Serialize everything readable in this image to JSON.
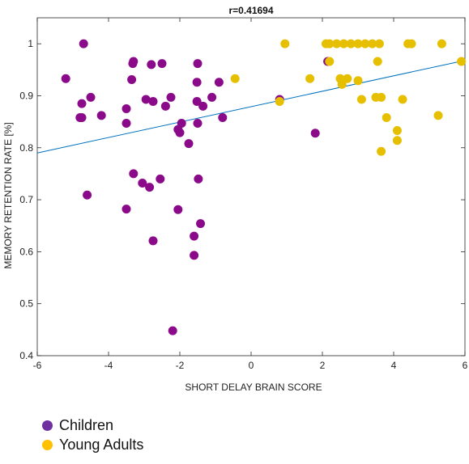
{
  "chart_data": {
    "type": "scatter",
    "title": "r=0.41694",
    "xlabel": "SHORT DELAY BRAIN SCORE",
    "ylabel": "MEMORY RETENTION RATE [%]",
    "xlim": [
      -6,
      6
    ],
    "ylim": [
      0.4,
      1.05
    ],
    "xticks": [
      "-6",
      "-4",
      "-2",
      "0",
      "2",
      "4",
      "6"
    ],
    "yticks": [
      "0.4",
      "0.5",
      "0.6",
      "0.7",
      "0.8",
      "0.9",
      "1"
    ],
    "grid": false,
    "legend_position": "bottom-left, outside",
    "trendline": {
      "x": [
        -6,
        6
      ],
      "y": [
        0.79,
        0.968
      ],
      "color": "#0072BD"
    },
    "series": [
      {
        "name": "Children",
        "color": "#8B0A8A",
        "legend_color": "#7030A0",
        "points": [
          [
            -4.7,
            1.0
          ],
          [
            -5.2,
            0.933
          ],
          [
            -3.3,
            0.966
          ],
          [
            -3.32,
            0.962
          ],
          [
            -2.8,
            0.96
          ],
          [
            -2.5,
            0.962
          ],
          [
            -1.5,
            0.962
          ],
          [
            -4.5,
            0.897
          ],
          [
            -3.35,
            0.931
          ],
          [
            -4.75,
            0.885
          ],
          [
            -4.8,
            0.858
          ],
          [
            -4.75,
            0.858
          ],
          [
            -4.2,
            0.862
          ],
          [
            -3.5,
            0.875
          ],
          [
            -3.5,
            0.847
          ],
          [
            -2.95,
            0.893
          ],
          [
            -2.75,
            0.889
          ],
          [
            -2.4,
            0.88
          ],
          [
            -2.25,
            0.897
          ],
          [
            -2.05,
            0.835
          ],
          [
            -2.0,
            0.829
          ],
          [
            -1.95,
            0.847
          ],
          [
            -1.75,
            0.808
          ],
          [
            -1.52,
            0.926
          ],
          [
            -1.52,
            0.889
          ],
          [
            -1.35,
            0.88
          ],
          [
            -1.1,
            0.897
          ],
          [
            -0.9,
            0.926
          ],
          [
            -1.5,
            0.847
          ],
          [
            -0.8,
            0.858
          ],
          [
            -4.6,
            0.709
          ],
          [
            -3.3,
            0.75
          ],
          [
            -3.05,
            0.732
          ],
          [
            -2.85,
            0.724
          ],
          [
            -2.55,
            0.74
          ],
          [
            -1.48,
            0.74
          ],
          [
            -3.5,
            0.682
          ],
          [
            -2.05,
            0.681
          ],
          [
            -1.42,
            0.654
          ],
          [
            -2.75,
            0.621
          ],
          [
            -1.6,
            0.63
          ],
          [
            -1.6,
            0.593
          ],
          [
            -2.2,
            0.448
          ],
          [
            0.8,
            0.893
          ],
          [
            1.8,
            0.828
          ],
          [
            2.15,
            0.966
          ]
        ]
      },
      {
        "name": "Young Adults",
        "color": "#E6C000",
        "legend_color": "#FFC000",
        "points": [
          [
            0.95,
            1.0
          ],
          [
            2.1,
            1.0
          ],
          [
            2.2,
            1.0
          ],
          [
            2.4,
            1.0
          ],
          [
            2.6,
            1.0
          ],
          [
            2.8,
            1.0
          ],
          [
            3.0,
            1.0
          ],
          [
            3.2,
            1.0
          ],
          [
            3.4,
            1.0
          ],
          [
            3.6,
            1.0
          ],
          [
            4.4,
            1.0
          ],
          [
            4.5,
            1.0
          ],
          [
            5.35,
            1.0
          ],
          [
            -0.45,
            0.933
          ],
          [
            1.65,
            0.933
          ],
          [
            2.2,
            0.966
          ],
          [
            3.55,
            0.966
          ],
          [
            5.9,
            0.966
          ],
          [
            2.5,
            0.933
          ],
          [
            2.7,
            0.933
          ],
          [
            2.55,
            0.922
          ],
          [
            3.0,
            0.929
          ],
          [
            0.8,
            0.889
          ],
          [
            3.1,
            0.893
          ],
          [
            3.5,
            0.897
          ],
          [
            3.65,
            0.897
          ],
          [
            4.25,
            0.893
          ],
          [
            3.8,
            0.858
          ],
          [
            5.25,
            0.862
          ],
          [
            4.1,
            0.833
          ],
          [
            4.1,
            0.814
          ],
          [
            3.65,
            0.793
          ]
        ]
      }
    ]
  },
  "legend": {
    "items": [
      {
        "label": "Children",
        "color": "#7030A0"
      },
      {
        "label": "Young Adults",
        "color": "#FFC000"
      }
    ]
  }
}
